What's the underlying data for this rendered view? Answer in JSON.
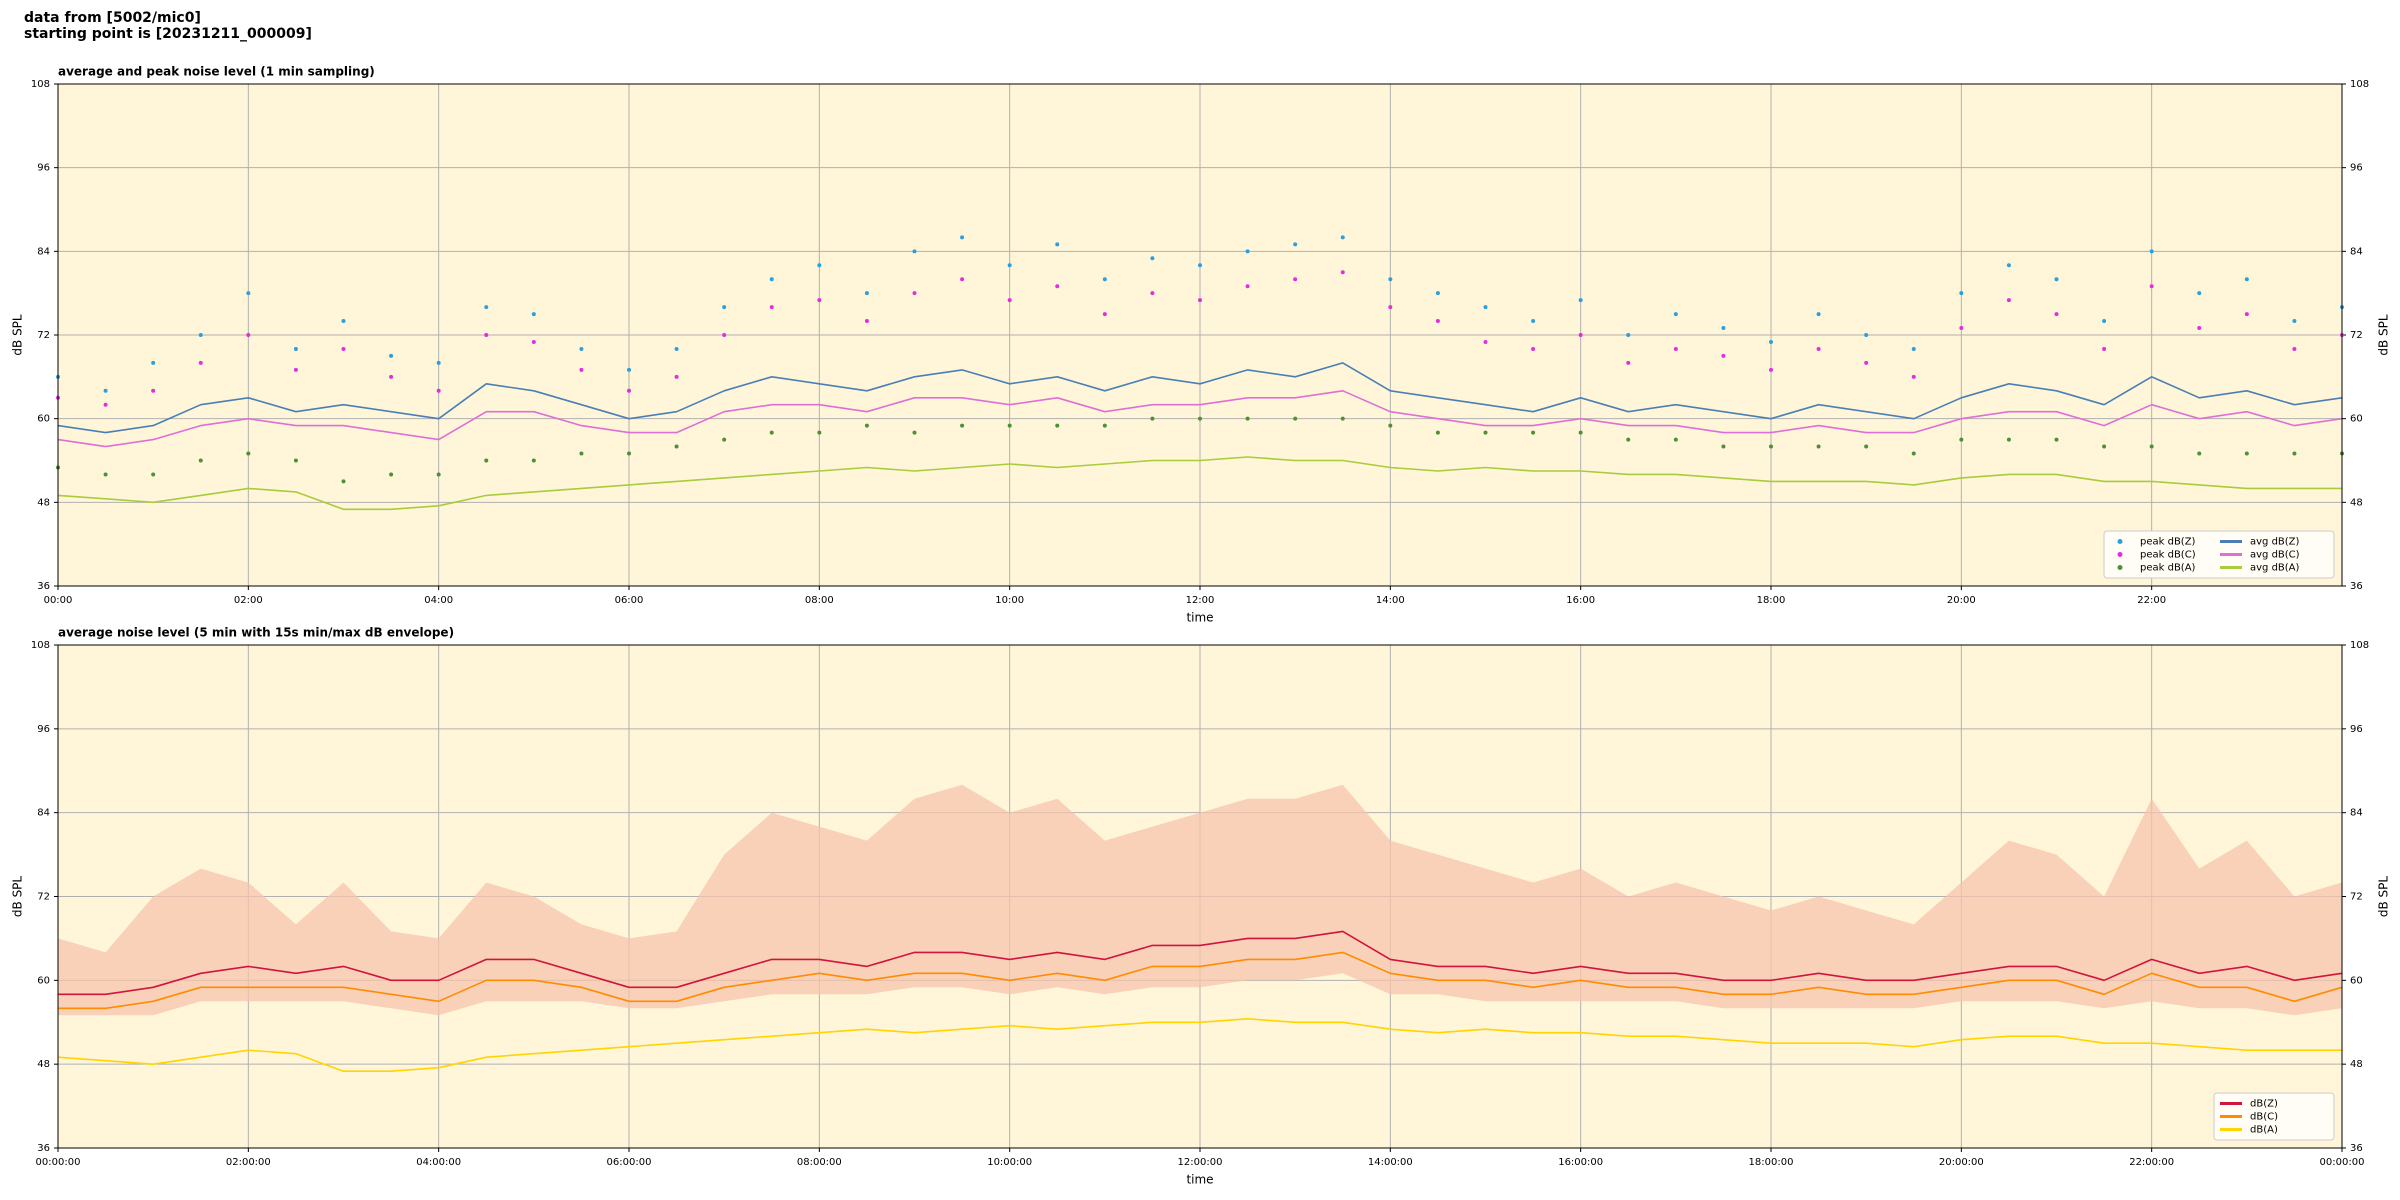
{
  "header": {
    "line1": "data from [5002/mic0]",
    "line2": "starting point is [20231211_000009]"
  },
  "chart_data": [
    {
      "type": "line",
      "title": "average and peak noise level (1 min sampling)",
      "x_label": "time",
      "y_label": "dB SPL",
      "xlim": [
        0,
        24
      ],
      "ylim": [
        36,
        108
      ],
      "yticks": [
        36,
        48,
        60,
        72,
        84,
        96,
        108
      ],
      "xticks": [
        {
          "value": 0,
          "label": "00:00"
        },
        {
          "value": 2,
          "label": "02:00"
        },
        {
          "value": 4,
          "label": "04:00"
        },
        {
          "value": 6,
          "label": "06:00"
        },
        {
          "value": 8,
          "label": "08:00"
        },
        {
          "value": 10,
          "label": "10:00"
        },
        {
          "value": 12,
          "label": "12:00"
        },
        {
          "value": 14,
          "label": "14:00"
        },
        {
          "value": 16,
          "label": "16:00"
        },
        {
          "value": 18,
          "label": "18:00"
        },
        {
          "value": 20,
          "label": "20:00"
        },
        {
          "value": 22,
          "label": "22:00"
        }
      ],
      "grid": true,
      "legend": "lower right",
      "background": "#fff6d9",
      "x": [
        0,
        0.5,
        1,
        1.5,
        2,
        2.5,
        3,
        3.5,
        4,
        4.5,
        5,
        5.5,
        6,
        6.5,
        7,
        7.5,
        8,
        8.5,
        9,
        9.5,
        10,
        10.5,
        11,
        11.5,
        12,
        12.5,
        13,
        13.5,
        14,
        14.5,
        15,
        15.5,
        16,
        16.5,
        17,
        17.5,
        18,
        18.5,
        19,
        19.5,
        20,
        20.5,
        21,
        21.5,
        22,
        22.5,
        23,
        23.5,
        24
      ],
      "series": [
        {
          "name": "peak dB(Z)",
          "kind": "points",
          "color": "#2b9fe0",
          "values": [
            66,
            64,
            68,
            72,
            78,
            70,
            74,
            69,
            68,
            76,
            75,
            70,
            67,
            70,
            76,
            80,
            82,
            78,
            84,
            86,
            82,
            85,
            80,
            83,
            82,
            84,
            85,
            86,
            80,
            78,
            76,
            74,
            77,
            72,
            75,
            73,
            71,
            75,
            72,
            70,
            78,
            82,
            80,
            74,
            84,
            78,
            80,
            74,
            76
          ]
        },
        {
          "name": "peak dB(C)",
          "kind": "points",
          "color": "#e22ee0",
          "values": [
            63,
            62,
            64,
            68,
            72,
            67,
            70,
            66,
            64,
            72,
            71,
            67,
            64,
            66,
            72,
            76,
            77,
            74,
            78,
            80,
            77,
            79,
            75,
            78,
            77,
            79,
            80,
            81,
            76,
            74,
            71,
            70,
            72,
            68,
            70,
            69,
            67,
            70,
            68,
            66,
            73,
            77,
            75,
            70,
            79,
            73,
            75,
            70,
            72
          ]
        },
        {
          "name": "peak dB(A)",
          "kind": "points",
          "color": "#4e8f3a",
          "values": [
            53,
            52,
            52,
            54,
            55,
            54,
            51,
            52,
            52,
            54,
            54,
            55,
            55,
            56,
            57,
            58,
            58,
            59,
            58,
            59,
            59,
            59,
            59,
            60,
            60,
            60,
            60,
            60,
            59,
            58,
            58,
            58,
            58,
            57,
            57,
            56,
            56,
            56,
            56,
            55,
            57,
            57,
            57,
            56,
            56,
            55,
            55,
            55,
            55
          ]
        },
        {
          "name": "avg dB(Z)",
          "kind": "line",
          "color": "#4a7fb5",
          "values": [
            59,
            58,
            59,
            62,
            63,
            61,
            62,
            61,
            60,
            65,
            64,
            62,
            60,
            61,
            64,
            66,
            65,
            64,
            66,
            67,
            65,
            66,
            64,
            66,
            65,
            67,
            66,
            68,
            64,
            63,
            62,
            61,
            63,
            61,
            62,
            61,
            60,
            62,
            61,
            60,
            63,
            65,
            64,
            62,
            66,
            63,
            64,
            62,
            63
          ]
        },
        {
          "name": "avg dB(C)",
          "kind": "line",
          "color": "#dd6fd6",
          "values": [
            57,
            56,
            57,
            59,
            60,
            59,
            59,
            58,
            57,
            61,
            61,
            59,
            58,
            58,
            61,
            62,
            62,
            61,
            63,
            63,
            62,
            63,
            61,
            62,
            62,
            63,
            63,
            64,
            61,
            60,
            59,
            59,
            60,
            59,
            59,
            58,
            58,
            59,
            58,
            58,
            60,
            61,
            61,
            59,
            62,
            60,
            61,
            59,
            60
          ]
        },
        {
          "name": "avg dB(A)",
          "kind": "line",
          "color": "#a8cc3c",
          "values": [
            49,
            48.5,
            48,
            49,
            50,
            49.5,
            47,
            47,
            47.5,
            49,
            49.5,
            50,
            50.5,
            51,
            51.5,
            52,
            52.5,
            53,
            52.5,
            53,
            53.5,
            53,
            53.5,
            54,
            54,
            54.5,
            54,
            54,
            53,
            52.5,
            53,
            52.5,
            52.5,
            52,
            52,
            51.5,
            51,
            51,
            51,
            50.5,
            51.5,
            52,
            52,
            51,
            51,
            50.5,
            50,
            50,
            50
          ]
        }
      ]
    },
    {
      "type": "line",
      "title": "average noise level (5 min with 15s min/max dB envelope)",
      "x_label": "time",
      "y_label": "dB SPL",
      "xlim": [
        0,
        24
      ],
      "ylim": [
        36,
        108
      ],
      "yticks": [
        36,
        48,
        60,
        72,
        84,
        96,
        108
      ],
      "xticks": [
        {
          "value": 0,
          "label": "00:00:00"
        },
        {
          "value": 2,
          "label": "02:00:00"
        },
        {
          "value": 4,
          "label": "04:00:00"
        },
        {
          "value": 6,
          "label": "06:00:00"
        },
        {
          "value": 8,
          "label": "08:00:00"
        },
        {
          "value": 10,
          "label": "10:00:00"
        },
        {
          "value": 12,
          "label": "12:00:00"
        },
        {
          "value": 14,
          "label": "14:00:00"
        },
        {
          "value": 16,
          "label": "16:00:00"
        },
        {
          "value": 18,
          "label": "18:00:00"
        },
        {
          "value": 20,
          "label": "20:00:00"
        },
        {
          "value": 22,
          "label": "22:00:00"
        },
        {
          "value": 24,
          "label": "00:00:00"
        }
      ],
      "grid": true,
      "legend": "lower right",
      "background": "#fff6d9",
      "x": [
        0,
        0.5,
        1,
        1.5,
        2,
        2.5,
        3,
        3.5,
        4,
        4.5,
        5,
        5.5,
        6,
        6.5,
        7,
        7.5,
        8,
        8.5,
        9,
        9.5,
        10,
        10.5,
        11,
        11.5,
        12,
        12.5,
        13,
        13.5,
        14,
        14.5,
        15,
        15.5,
        16,
        16.5,
        17,
        17.5,
        18,
        18.5,
        19,
        19.5,
        20,
        20.5,
        21,
        21.5,
        22,
        22.5,
        23,
        23.5,
        24
      ],
      "envelope": {
        "color": "#f6c4ac",
        "upper": [
          66,
          64,
          72,
          76,
          74,
          68,
          74,
          67,
          66,
          74,
          72,
          68,
          66,
          67,
          78,
          84,
          82,
          80,
          86,
          88,
          84,
          86,
          80,
          82,
          84,
          86,
          86,
          88,
          80,
          78,
          76,
          74,
          76,
          72,
          74,
          72,
          70,
          72,
          70,
          68,
          74,
          80,
          78,
          72,
          86,
          76,
          80,
          72,
          74
        ],
        "lower": [
          55,
          55,
          55,
          57,
          57,
          57,
          57,
          56,
          55,
          57,
          57,
          57,
          56,
          56,
          57,
          58,
          58,
          58,
          59,
          59,
          58,
          59,
          58,
          59,
          59,
          60,
          60,
          61,
          58,
          58,
          57,
          57,
          57,
          57,
          57,
          56,
          56,
          56,
          56,
          56,
          57,
          57,
          57,
          56,
          57,
          56,
          56,
          55,
          56
        ]
      },
      "series": [
        {
          "name": "dB(Z)",
          "kind": "line",
          "color": "#d2143c",
          "values": [
            58,
            58,
            59,
            61,
            62,
            61,
            62,
            60,
            60,
            63,
            63,
            61,
            59,
            59,
            61,
            63,
            63,
            62,
            64,
            64,
            63,
            64,
            63,
            65,
            65,
            66,
            66,
            67,
            63,
            62,
            62,
            61,
            62,
            61,
            61,
            60,
            60,
            61,
            60,
            60,
            61,
            62,
            62,
            60,
            63,
            61,
            62,
            60,
            61
          ]
        },
        {
          "name": "dB(C)",
          "kind": "line",
          "color": "#ff8c00",
          "values": [
            56,
            56,
            57,
            59,
            59,
            59,
            59,
            58,
            57,
            60,
            60,
            59,
            57,
            57,
            59,
            60,
            61,
            60,
            61,
            61,
            60,
            61,
            60,
            62,
            62,
            63,
            63,
            64,
            61,
            60,
            60,
            59,
            60,
            59,
            59,
            58,
            58,
            59,
            58,
            58,
            59,
            60,
            60,
            58,
            61,
            59,
            59,
            57,
            59
          ]
        },
        {
          "name": "dB(A)",
          "kind": "line",
          "color": "#ffd400",
          "values": [
            49,
            48.5,
            48,
            49,
            50,
            49.5,
            47,
            47,
            47.5,
            49,
            49.5,
            50,
            50.5,
            51,
            51.5,
            52,
            52.5,
            53,
            52.5,
            53,
            53.5,
            53,
            53.5,
            54,
            54,
            54.5,
            54,
            54,
            53,
            52.5,
            53,
            52.5,
            52.5,
            52,
            52,
            51.5,
            51,
            51,
            51,
            50.5,
            51.5,
            52,
            52,
            51,
            51,
            50.5,
            50,
            50,
            50
          ]
        }
      ]
    }
  ]
}
